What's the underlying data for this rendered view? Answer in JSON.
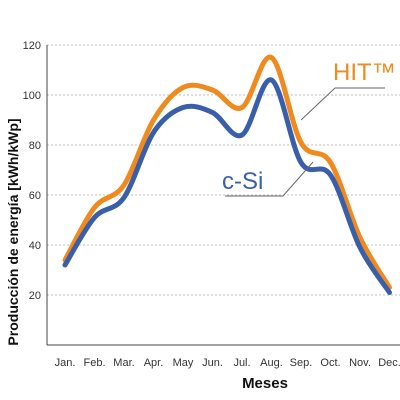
{
  "chart_data": {
    "type": "line",
    "xlabel": "Meses",
    "ylabel": "Producción de energía [kWh/kWp]",
    "categories": [
      "Jan.",
      "Feb.",
      "Mar.",
      "Apr.",
      "May",
      "Jun.",
      "Jul.",
      "Aug.",
      "Sep.",
      "Oct.",
      "Nov.",
      "Dec."
    ],
    "y_ticks": [
      "20",
      "40",
      "60",
      "80",
      "100",
      "120"
    ],
    "ylim": [
      0,
      120
    ],
    "grid": "horizontal dashed",
    "series": [
      {
        "name": "HIT™",
        "color": "#F08A1E",
        "values": [
          34,
          55,
          64,
          90,
          103,
          102,
          95,
          115,
          81,
          73,
          43,
          23
        ]
      },
      {
        "name": "c-Si",
        "color": "#3A5FAA",
        "values": [
          32,
          51,
          59,
          85,
          95,
          93,
          84,
          106,
          73,
          68,
          39,
          21
        ]
      }
    ]
  }
}
